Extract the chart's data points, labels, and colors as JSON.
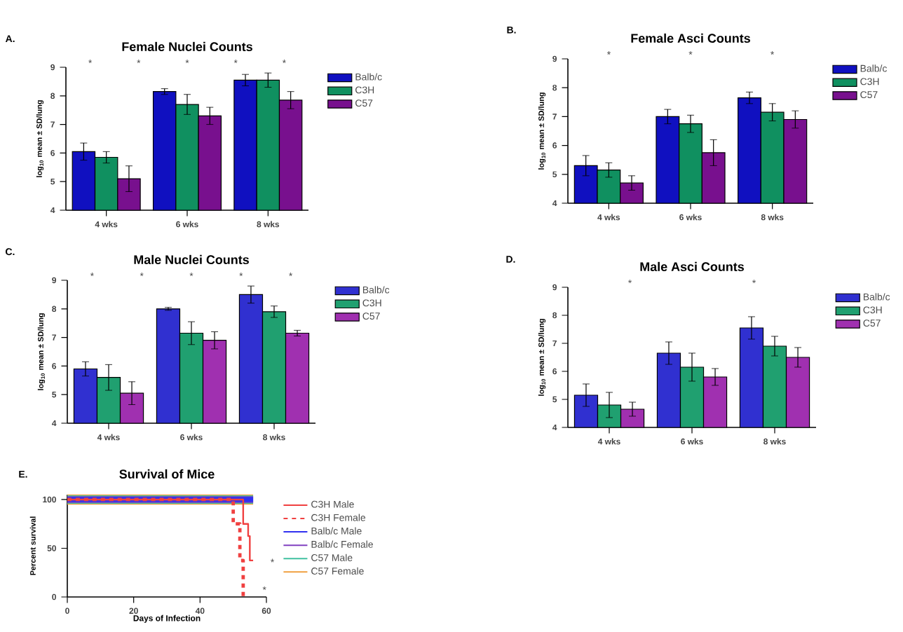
{
  "chart_data": [
    {
      "type": "bar",
      "title": "Female Nuclei Counts",
      "ylabel": "log$_{10}$ mean ± SD/lung",
      "categories": [
        "4 wks",
        "6 wks",
        "8 wks"
      ],
      "ylim": [
        4,
        9
      ],
      "yticks": [
        4,
        5,
        6,
        7,
        8,
        9
      ],
      "legend": "right",
      "series": [
        {
          "name": "Balb/c",
          "color": "#1010c0",
          "values": [
            6.05,
            8.15,
            8.55
          ],
          "errors": [
            0.3,
            0.1,
            0.2
          ]
        },
        {
          "name": "C3H",
          "color": "#109060",
          "values": [
            5.85,
            7.7,
            8.55
          ],
          "errors": [
            0.2,
            0.35,
            0.25
          ]
        },
        {
          "name": "C57",
          "color": "#78108e",
          "values": [
            5.1,
            7.3,
            7.85
          ],
          "errors": [
            0.45,
            0.3,
            0.3
          ]
        }
      ],
      "annotations": [
        "A.",
        "*",
        "*",
        "*",
        "*",
        "*"
      ]
    },
    {
      "type": "bar",
      "title": "Female Asci Counts",
      "ylabel": "log$_{10}$ mean ± SD/lung",
      "categories": [
        "4 wks",
        "6 wks",
        "8 wks"
      ],
      "ylim": [
        4,
        9
      ],
      "yticks": [
        4,
        5,
        6,
        7,
        8,
        9
      ],
      "legend": "right",
      "series": [
        {
          "name": "Balb/c",
          "color": "#1010c0",
          "values": [
            5.3,
            7.0,
            7.65
          ],
          "errors": [
            0.35,
            0.25,
            0.2
          ]
        },
        {
          "name": "C3H",
          "color": "#109060",
          "values": [
            5.15,
            6.75,
            7.15
          ],
          "errors": [
            0.25,
            0.3,
            0.3
          ]
        },
        {
          "name": "C57",
          "color": "#78108e",
          "values": [
            4.7,
            5.75,
            6.9
          ],
          "errors": [
            0.25,
            0.45,
            0.3
          ]
        }
      ],
      "annotations": [
        "B.",
        "*",
        "*",
        "*"
      ]
    },
    {
      "type": "bar",
      "title": "Male Nuclei Counts",
      "ylabel": "log$_{10}$ mean ± SD/lung",
      "categories": [
        "4 wks",
        "6 wks",
        "8 wks"
      ],
      "ylim": [
        4,
        9
      ],
      "yticks": [
        4,
        5,
        6,
        7,
        8,
        9
      ],
      "legend": "right",
      "series": [
        {
          "name": "Balb/c",
          "color": "#3030d0",
          "values": [
            5.9,
            8.0,
            8.5
          ],
          "errors": [
            0.25,
            0.05,
            0.3
          ]
        },
        {
          "name": "C3H",
          "color": "#20a070",
          "values": [
            5.6,
            7.15,
            7.9
          ],
          "errors": [
            0.45,
            0.4,
            0.2
          ]
        },
        {
          "name": "C57",
          "color": "#a030b0",
          "values": [
            5.05,
            6.9,
            7.15
          ],
          "errors": [
            0.4,
            0.3,
            0.1
          ]
        }
      ],
      "annotations": [
        "C.",
        "*",
        "*",
        "*",
        "*",
        "*"
      ]
    },
    {
      "type": "bar",
      "title": "Male Asci Counts",
      "ylabel": "log$_{10}$ mean ± SD/lung",
      "categories": [
        "4 wks",
        "6 wks",
        "8 wks"
      ],
      "ylim": [
        4,
        9
      ],
      "yticks": [
        4,
        5,
        6,
        7,
        8,
        9
      ],
      "legend": "right",
      "series": [
        {
          "name": "Balb/c",
          "color": "#3030d0",
          "values": [
            5.15,
            6.65,
            7.55
          ],
          "errors": [
            0.4,
            0.4,
            0.4
          ]
        },
        {
          "name": "C3H",
          "color": "#20a070",
          "values": [
            4.8,
            6.15,
            6.9
          ],
          "errors": [
            0.45,
            0.5,
            0.35
          ]
        },
        {
          "name": "C57",
          "color": "#a030b0",
          "values": [
            4.65,
            5.8,
            6.5
          ],
          "errors": [
            0.25,
            0.3,
            0.35
          ]
        }
      ],
      "annotations": [
        "D.",
        "*",
        "*"
      ]
    },
    {
      "type": "step",
      "title": "Survival of Mice",
      "xlabel": "Days of Infection",
      "ylabel": "Percent survival",
      "xlim": [
        0,
        60
      ],
      "xticks": [
        0,
        20,
        40,
        60
      ],
      "ylim": [
        0,
        105
      ],
      "yticks": [
        0,
        50,
        100
      ],
      "legend": "right",
      "series": [
        {
          "name": "C3H Male",
          "color": "#f04040",
          "x": [
            0,
            53,
            54.5,
            55,
            56
          ],
          "values": [
            100,
            75,
            62.5,
            37.5,
            37.5
          ]
        },
        {
          "name": "C3H Female",
          "color": "#f04040",
          "line_style": "dashed",
          "x": [
            0,
            50,
            52,
            53,
            53
          ],
          "values": [
            100,
            75,
            37.5,
            0,
            0
          ]
        },
        {
          "name": "Balb/c Male",
          "color": "#3030f0",
          "x": [
            0,
            56
          ],
          "values": [
            100,
            100
          ]
        },
        {
          "name": "Balb/c Female",
          "color": "#8040c0",
          "x": [
            0,
            56
          ],
          "values": [
            100,
            100
          ]
        },
        {
          "name": "C57 Male",
          "color": "#40c0a0",
          "x": [
            0,
            56
          ],
          "values": [
            100,
            100
          ]
        },
        {
          "name": "C57 Female",
          "color": "#f0a040",
          "x": [
            0,
            56
          ],
          "values": [
            100,
            100
          ]
        }
      ],
      "annotations": [
        "E.",
        "*",
        "*"
      ]
    }
  ]
}
